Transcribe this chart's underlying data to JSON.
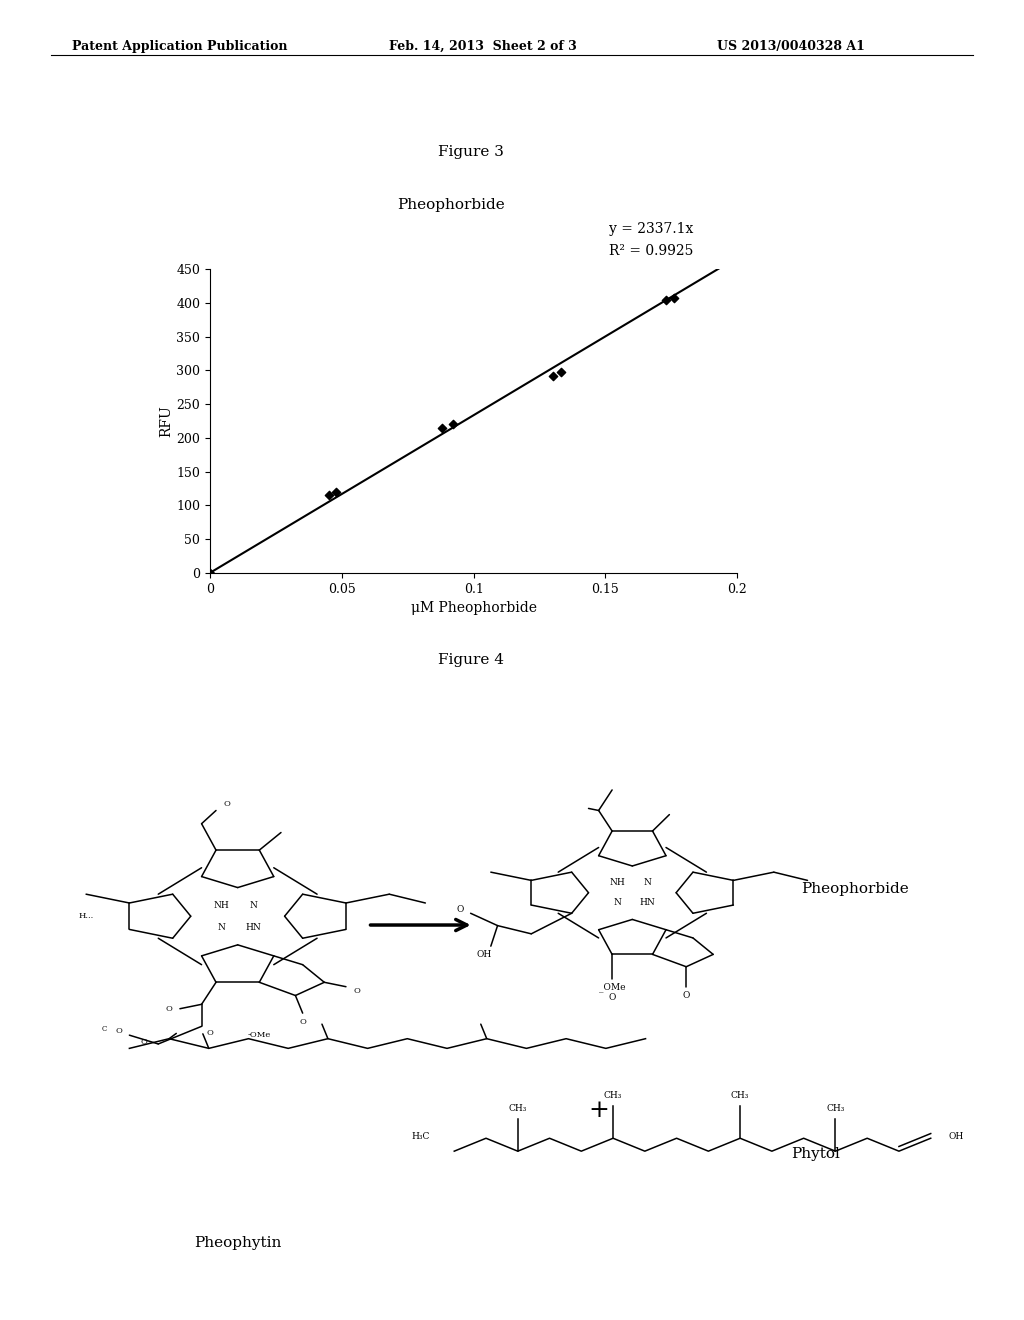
{
  "header_left": "Patent Application Publication",
  "header_center": "Feb. 14, 2013  Sheet 2 of 3",
  "header_right": "US 2013/0040328 A1",
  "fig3_label": "Figure 3",
  "chart_title": "Pheophorbide",
  "equation": "y = 2337.1x",
  "r_squared": "R² = 0.9925",
  "ylabel": "RFU",
  "xlabel": "μM Pheophorbide",
  "xlim": [
    0,
    0.2
  ],
  "ylim": [
    0,
    450
  ],
  "xticks": [
    0,
    0.05,
    0.1,
    0.15,
    0.2
  ],
  "yticks": [
    0,
    50,
    100,
    150,
    200,
    250,
    300,
    350,
    400,
    450
  ],
  "scatter_x": [
    0.0,
    0.045,
    0.048,
    0.088,
    0.092,
    0.13,
    0.133,
    0.173,
    0.176
  ],
  "scatter_y": [
    0.0,
    115,
    120,
    215,
    220,
    292,
    298,
    405,
    408
  ],
  "slope": 2337.1,
  "fig4_label": "Figure 4",
  "background": "#ffffff",
  "text_color": "#000000",
  "marker_color": "#000000",
  "line_color": "#000000",
  "header_fontsize": 9,
  "title_fontsize": 11,
  "axis_label_fontsize": 10,
  "tick_fontsize": 9,
  "annotation_fontsize": 10,
  "fig_label_fontsize": 11
}
